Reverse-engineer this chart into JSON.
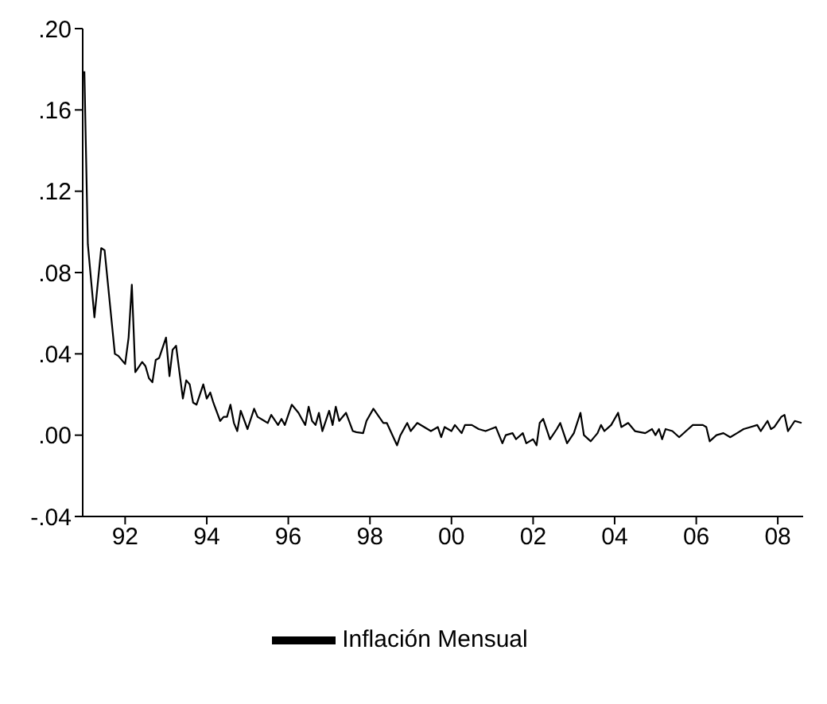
{
  "chart_data": {
    "type": "line",
    "legend": "bottom",
    "grid": false,
    "xlim": [
      "1990-12-17",
      "2008-08-15"
    ],
    "xticks": [
      {
        "value": "1992",
        "label": "92"
      },
      {
        "value": "1994",
        "label": "94"
      },
      {
        "value": "1996",
        "label": "96"
      },
      {
        "value": "1998",
        "label": "98"
      },
      {
        "value": "2000",
        "label": "00"
      },
      {
        "value": "2002",
        "label": "02"
      },
      {
        "value": "2004",
        "label": "04"
      },
      {
        "value": "2006",
        "label": "06"
      },
      {
        "value": "2008",
        "label": "08"
      }
    ],
    "ylim": [
      -0.04,
      0.2
    ],
    "yticks": [
      {
        "value": -0.04,
        "label": "-.04"
      },
      {
        "value": 0,
        "label": ".00"
      },
      {
        "value": 0.04,
        "label": ".04"
      },
      {
        "value": 0.08,
        "label": ".08"
      },
      {
        "value": 0.12,
        "label": ".12"
      },
      {
        "value": 0.16,
        "label": ".16"
      },
      {
        "value": 0.2,
        "label": ".20"
      }
    ],
    "x": [
      "1991-01",
      "1991-02",
      "1991-04",
      "1991-06",
      "1991-07",
      "1991-10",
      "1991-11",
      "1992-01",
      "1992-02",
      "1992-03",
      "1992-04",
      "1992-06",
      "1992-07",
      "1992-08",
      "1992-09",
      "1992-10",
      "1992-11",
      "1993-01",
      "1993-02",
      "1993-03",
      "1993-04",
      "1993-06",
      "1993-07",
      "1993-08",
      "1993-09",
      "1993-10",
      "1993-12",
      "1994-01",
      "1994-02",
      "1994-03",
      "1994-05",
      "1994-06",
      "1994-07",
      "1994-08",
      "1994-09",
      "1994-10",
      "1994-11",
      "1995-01",
      "1995-03",
      "1995-04",
      "1995-06",
      "1995-07",
      "1995-08",
      "1995-10",
      "1995-11",
      "1995-12",
      "1996-02",
      "1996-04",
      "1996-05",
      "1996-06",
      "1996-07",
      "1996-08",
      "1996-09",
      "1996-10",
      "1996-11",
      "1997-01",
      "1997-02",
      "1997-03",
      "1997-04",
      "1997-06",
      "1997-08",
      "1997-09",
      "1997-11",
      "1997-12",
      "1998-02",
      "1998-05",
      "1998-06",
      "1998-09",
      "1998-10",
      "1998-12",
      "1999-01",
      "1999-03",
      "1999-06",
      "1999-07",
      "1999-09",
      "1999-10",
      "1999-11",
      "2000-01",
      "2000-02",
      "2000-04",
      "2000-05",
      "2000-07",
      "2000-09",
      "2000-11",
      "2001-02",
      "2001-04",
      "2001-05",
      "2001-07",
      "2001-08",
      "2001-10",
      "2001-11",
      "2002-01",
      "2002-02",
      "2002-03",
      "2002-04",
      "2002-06",
      "2002-08",
      "2002-09",
      "2002-11",
      "2003-01",
      "2003-03",
      "2003-04",
      "2003-06",
      "2003-08",
      "2003-09",
      "2003-10",
      "2003-12",
      "2004-02",
      "2004-03",
      "2004-05",
      "2004-07",
      "2004-10",
      "2004-12",
      "2005-01",
      "2005-02",
      "2005-03",
      "2005-04",
      "2005-06",
      "2005-08",
      "2005-10",
      "2005-12",
      "2006-03",
      "2006-04",
      "2006-05",
      "2006-07",
      "2006-09",
      "2006-11",
      "2007-01",
      "2007-03",
      "2007-05",
      "2007-07",
      "2007-08",
      "2007-10",
      "2007-11",
      "2007-12",
      "2008-02",
      "2008-03",
      "2008-04",
      "2008-06",
      "2008-08"
    ],
    "series": [
      {
        "name": "Inflación Mensual",
        "color": "#000000",
        "values": [
          0.179,
          0.094,
          0.058,
          0.092,
          0.091,
          0.04,
          0.039,
          0.035,
          0.048,
          0.074,
          0.031,
          0.036,
          0.034,
          0.028,
          0.026,
          0.037,
          0.038,
          0.048,
          0.029,
          0.042,
          0.044,
          0.018,
          0.027,
          0.025,
          0.016,
          0.015,
          0.025,
          0.018,
          0.021,
          0.016,
          0.007,
          0.009,
          0.009,
          0.015,
          0.006,
          0.002,
          0.012,
          0.003,
          0.013,
          0.009,
          0.007,
          0.006,
          0.01,
          0.005,
          0.008,
          0.005,
          0.015,
          0.011,
          0.008,
          0.005,
          0.014,
          0.007,
          0.005,
          0.011,
          0.002,
          0.012,
          0.005,
          0.014,
          0.007,
          0.011,
          0.002,
          0.0015,
          0.001,
          0.007,
          0.013,
          0.006,
          0.006,
          -0.005,
          0.0,
          0.006,
          0.002,
          0.006,
          0.003,
          0.002,
          0.004,
          -0.001,
          0.004,
          0.002,
          0.005,
          0.001,
          0.005,
          0.005,
          0.003,
          0.002,
          0.004,
          -0.004,
          0.0,
          0.001,
          -0.002,
          0.001,
          -0.004,
          -0.002,
          -0.005,
          0.006,
          0.008,
          -0.002,
          0.003,
          0.006,
          -0.004,
          0.001,
          0.011,
          0.0,
          -0.003,
          0.001,
          0.005,
          0.002,
          0.005,
          0.011,
          0.004,
          0.006,
          0.002,
          0.001,
          0.003,
          0.0,
          0.003,
          -0.002,
          0.003,
          0.002,
          -0.001,
          0.002,
          0.005,
          0.005,
          0.004,
          -0.003,
          0.0,
          0.001,
          -0.001,
          0.001,
          0.003,
          0.004,
          0.005,
          0.002,
          0.007,
          0.003,
          0.004,
          0.009,
          0.01,
          0.002,
          0.007,
          0.006
        ]
      }
    ]
  }
}
